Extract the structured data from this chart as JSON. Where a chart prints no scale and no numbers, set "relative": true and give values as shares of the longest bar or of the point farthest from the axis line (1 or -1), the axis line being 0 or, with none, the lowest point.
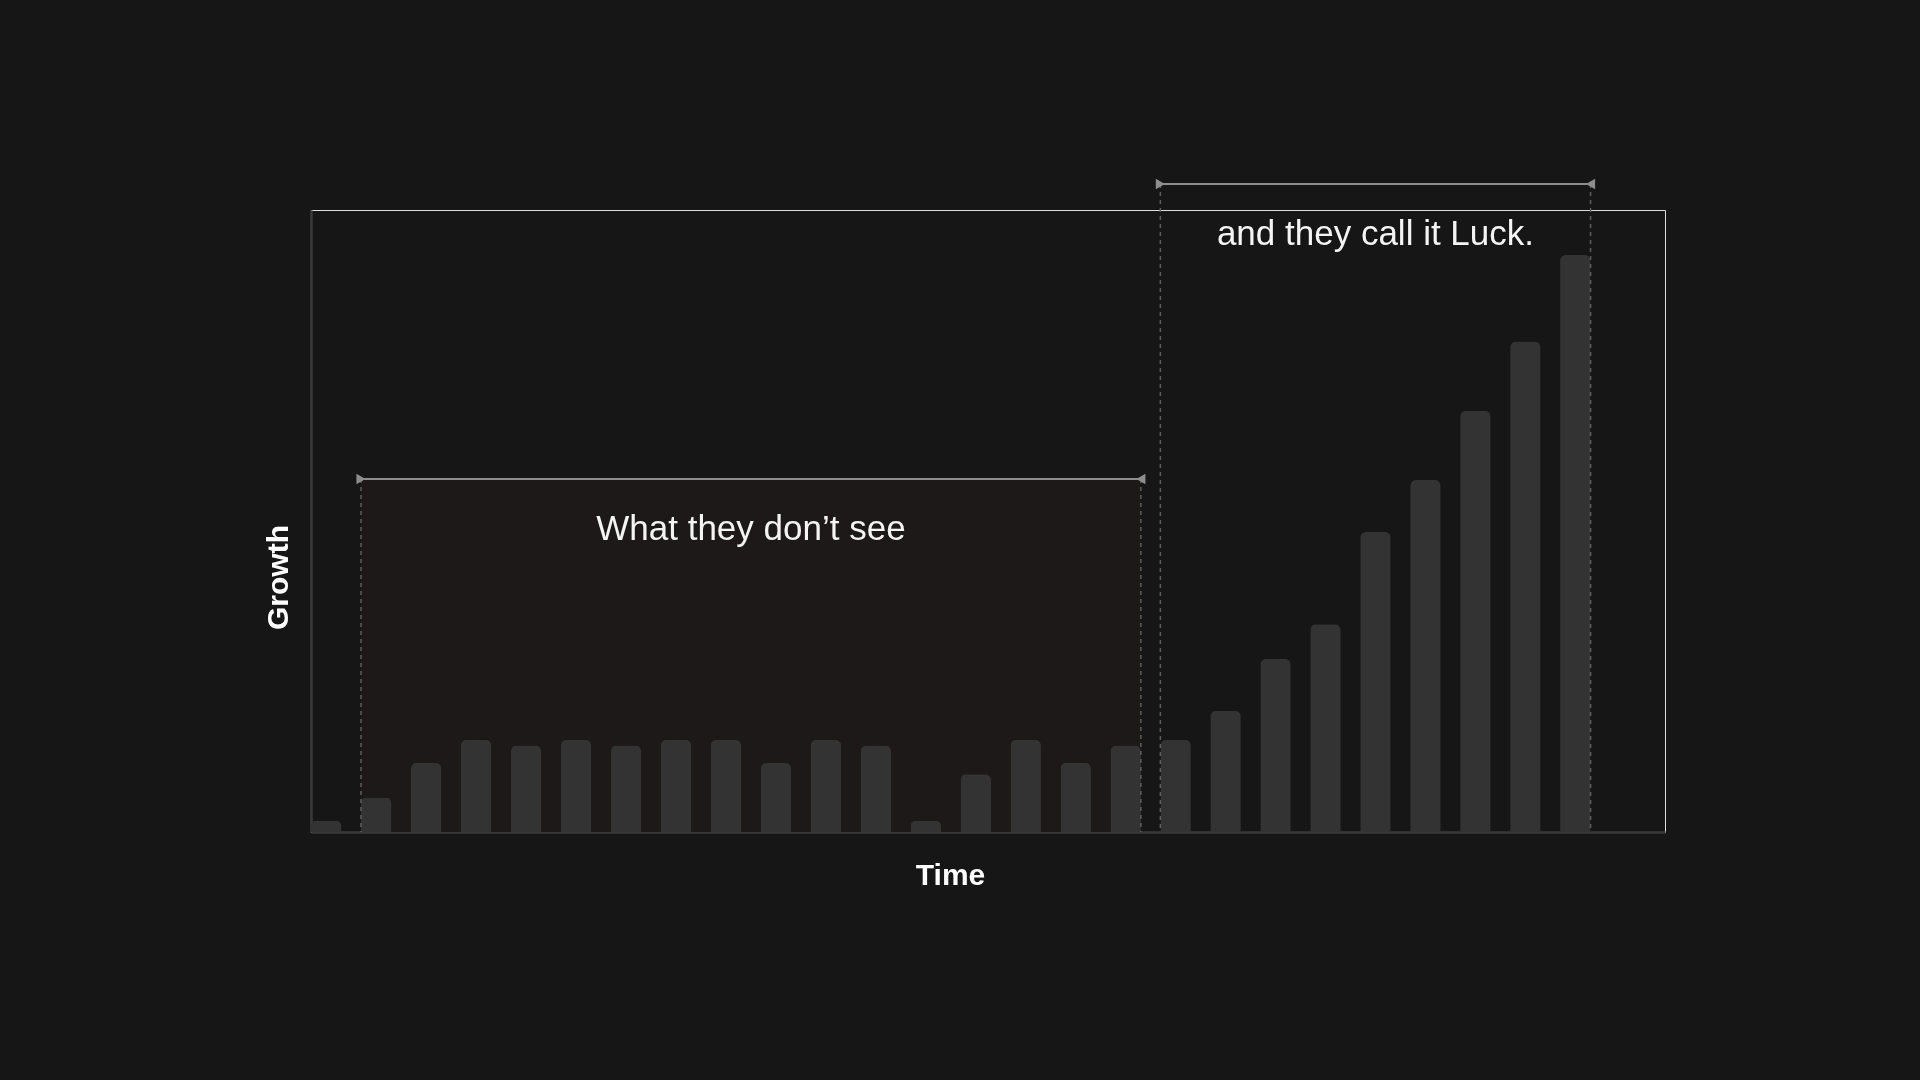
{
  "chart_data": {
    "type": "bar",
    "relative": true,
    "xlabel": "Time",
    "ylabel": "Growth",
    "categories": [
      null,
      null,
      null,
      null,
      null,
      null,
      null,
      null,
      null,
      null,
      null,
      null,
      null,
      null,
      null,
      null,
      null,
      null,
      null,
      null,
      null,
      null,
      null,
      null,
      null,
      null
    ],
    "values": [
      0.02,
      0.06,
      0.12,
      0.16,
      0.15,
      0.16,
      0.15,
      0.16,
      0.16,
      0.12,
      0.16,
      0.15,
      0.02,
      0.1,
      0.16,
      0.12,
      0.15,
      0.16,
      0.21,
      0.3,
      0.36,
      0.52,
      0.61,
      0.73,
      0.85,
      1
    ],
    "color": "#333333",
    "annotations": [
      "What they don’t see",
      "and they call it Luck."
    ]
  }
}
